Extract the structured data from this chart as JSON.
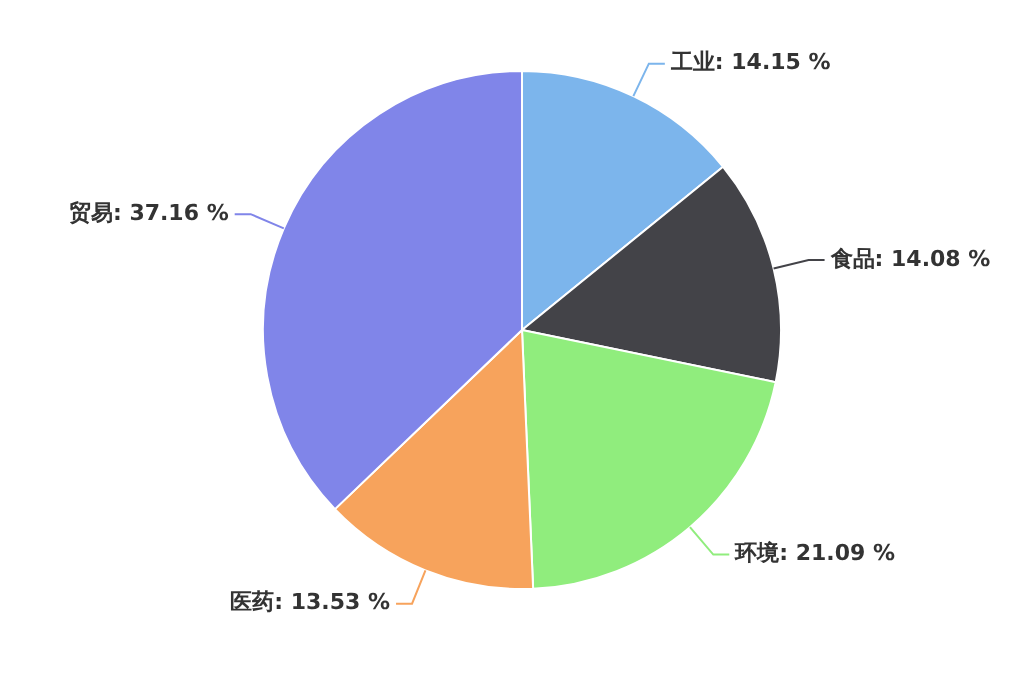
{
  "chart_data": {
    "type": "pie",
    "categories": [
      "工业",
      "食品",
      "环境",
      "医药",
      "贸易"
    ],
    "values": [
      14.15,
      14.08,
      21.09,
      13.53,
      37.16
    ],
    "value_labels": [
      "14.15 %",
      "14.08 %",
      "21.09 %",
      "13.53 %",
      "37.16 %"
    ],
    "colors": [
      "#7cb5ec",
      "#434348",
      "#90ed7d",
      "#f7a35c",
      "#8085e9"
    ]
  }
}
